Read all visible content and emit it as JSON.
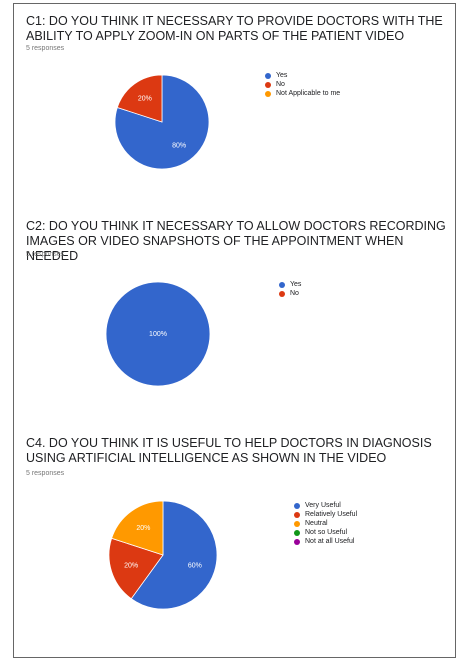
{
  "charts": [
    {
      "title": "C1: DO YOU THINK IT NECESSARY TO PROVIDE DOCTORS WITH THE ABILITY TO APPLY ZOOM-IN ON PARTS OF THE PATIENT VIDEO",
      "responses": "5 responses",
      "legend": [
        {
          "label": "Yes",
          "color": "#3366cc"
        },
        {
          "label": "No",
          "color": "#dc3912"
        },
        {
          "label": "Not Applicable to me",
          "color": "#ff9900"
        }
      ]
    },
    {
      "title": "C2: DO YOU THINK IT NECESSARY TO ALLOW DOCTORS RECORDING IMAGES OR VIDEO SNAPSHOTS OF THE APPOINTMENT WHEN NEEDED",
      "responses": "5 responses",
      "legend": [
        {
          "label": "Yes",
          "color": "#3366cc"
        },
        {
          "label": "No",
          "color": "#dc3912"
        }
      ]
    },
    {
      "title": "C4. DO YOU THINK IT IS USEFUL TO HELP DOCTORS IN DIAGNOSIS USING ARTIFICIAL INTELLIGENCE AS SHOWN IN THE VIDEO",
      "responses": "5 responses",
      "legend": [
        {
          "label": "Very Useful",
          "color": "#3366cc"
        },
        {
          "label": "Relatively Useful",
          "color": "#dc3912"
        },
        {
          "label": "Neutral",
          "color": "#ff9900"
        },
        {
          "label": "Not so Useful",
          "color": "#109618"
        },
        {
          "label": "Not at all Useful",
          "color": "#990099"
        }
      ]
    }
  ],
  "chart_data": [
    {
      "type": "pie",
      "title": "C1: DO YOU THINK IT NECESSARY TO PROVIDE DOCTORS WITH THE ABILITY TO APPLY ZOOM-IN ON PARTS OF THE PATIENT VIDEO",
      "categories": [
        "Yes",
        "No",
        "Not Applicable to me"
      ],
      "values": [
        80,
        20,
        0
      ],
      "labels": [
        "80%",
        "20%",
        ""
      ],
      "colors": [
        "#3366cc",
        "#dc3912",
        "#ff9900"
      ],
      "legend": "right"
    },
    {
      "type": "pie",
      "title": "C2: DO YOU THINK IT NECESSARY TO ALLOW DOCTORS RECORDING IMAGES OR VIDEO SNAPSHOTS OF THE APPOINTMENT WHEN NEEDED",
      "categories": [
        "Yes",
        "No"
      ],
      "values": [
        100,
        0
      ],
      "labels": [
        "100%",
        ""
      ],
      "colors": [
        "#3366cc",
        "#dc3912"
      ],
      "legend": "right"
    },
    {
      "type": "pie",
      "title": "C4. DO YOU THINK IT IS USEFUL TO HELP DOCTORS IN DIAGNOSIS USING ARTIFICIAL INTELLIGENCE AS SHOWN IN THE VIDEO",
      "categories": [
        "Very Useful",
        "Relatively Useful",
        "Neutral",
        "Not so Useful",
        "Not at all Useful"
      ],
      "values": [
        60,
        20,
        20,
        0,
        0
      ],
      "labels": [
        "60%",
        "20%",
        "20%",
        "",
        ""
      ],
      "colors": [
        "#3366cc",
        "#dc3912",
        "#ff9900",
        "#109618",
        "#990099"
      ],
      "legend": "right"
    }
  ]
}
